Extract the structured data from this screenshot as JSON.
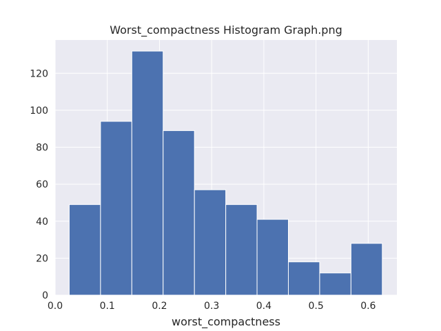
{
  "chart_data": {
    "type": "bar",
    "title": "Worst_compactness Histogram Graph.png",
    "xlabel": "worst_compactness",
    "ylabel": "",
    "xlim": [
      0.0,
      0.655
    ],
    "ylim": [
      0,
      138
    ],
    "xticks": [
      0.0,
      0.1,
      0.2,
      0.3,
      0.4,
      0.5,
      0.6
    ],
    "yticks": [
      0,
      20,
      40,
      60,
      80,
      100,
      120
    ],
    "grid": true,
    "bins": [
      {
        "x0": 0.027,
        "x1": 0.087,
        "count": 49
      },
      {
        "x0": 0.087,
        "x1": 0.147,
        "count": 94
      },
      {
        "x0": 0.147,
        "x1": 0.207,
        "count": 132
      },
      {
        "x0": 0.207,
        "x1": 0.267,
        "count": 89
      },
      {
        "x0": 0.267,
        "x1": 0.327,
        "count": 57
      },
      {
        "x0": 0.327,
        "x1": 0.387,
        "count": 49
      },
      {
        "x0": 0.387,
        "x1": 0.447,
        "count": 41
      },
      {
        "x0": 0.447,
        "x1": 0.507,
        "count": 18
      },
      {
        "x0": 0.507,
        "x1": 0.567,
        "count": 12
      },
      {
        "x0": 0.567,
        "x1": 0.627,
        "count": 28
      }
    ],
    "colors": {
      "bar": "#4c72b0",
      "background": "#eaeaf2",
      "grid": "#ffffff"
    }
  }
}
